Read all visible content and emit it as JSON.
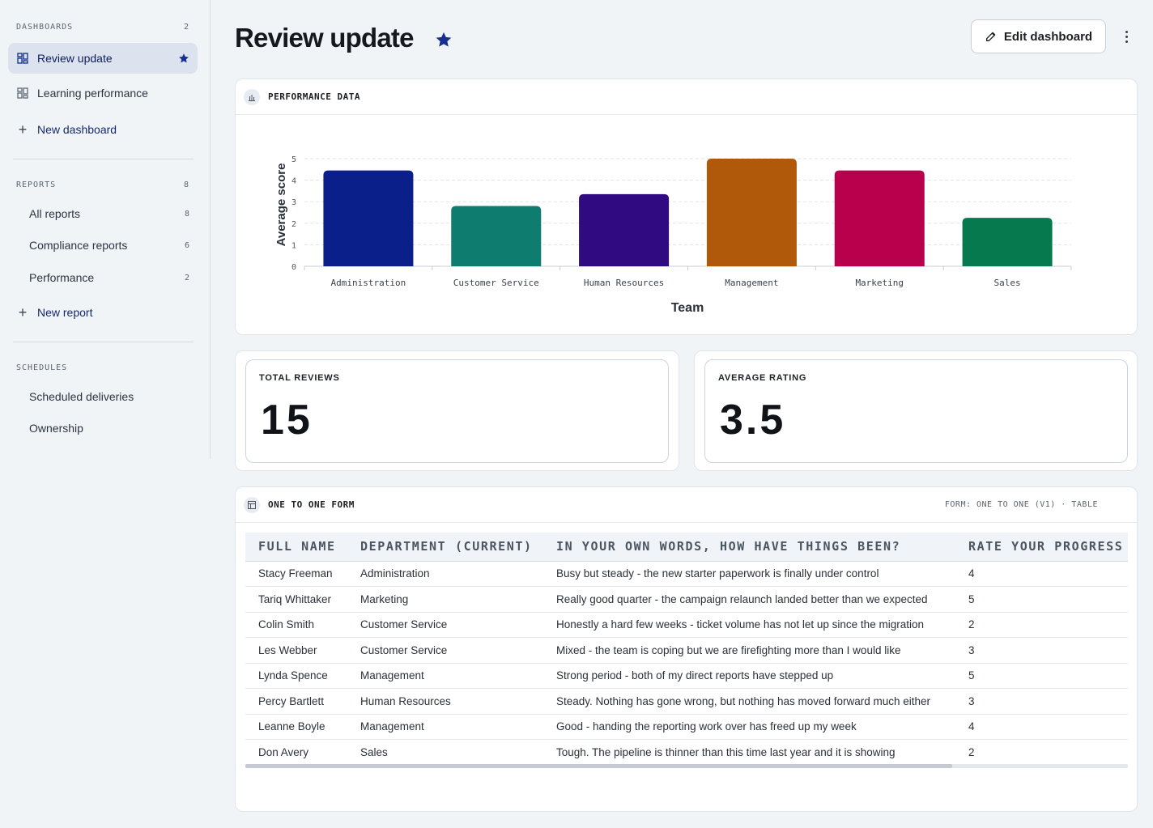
{
  "sidebar": {
    "dashboards": {
      "heading": "DASHBOARDS",
      "count": "2",
      "items": [
        {
          "label": "Review update"
        },
        {
          "label": "Learning performance"
        }
      ],
      "new_label": "New dashboard"
    },
    "reports": {
      "heading": "REPORTS",
      "count": "8",
      "items": [
        {
          "label": "All reports",
          "count": "8"
        },
        {
          "label": "Compliance reports",
          "count": "6"
        },
        {
          "label": "Performance",
          "count": "2"
        }
      ],
      "new_label": "New report"
    },
    "schedules": {
      "heading": "SCHEDULES",
      "items": [
        {
          "label": "Scheduled deliveries"
        },
        {
          "label": "Ownership"
        }
      ]
    }
  },
  "header": {
    "title": "Review update",
    "edit_label": "Edit dashboard"
  },
  "chart_panel": {
    "title": "PERFORMANCE DATA"
  },
  "chart_data": {
    "type": "bar",
    "categories": [
      "Administration",
      "Customer Service",
      "Human Resources",
      "Management",
      "Marketing",
      "Sales"
    ],
    "values": [
      4.45,
      2.8,
      3.35,
      5.0,
      4.45,
      2.25
    ],
    "colors": [
      "#0b1f8a",
      "#0e7c6e",
      "#2f0a80",
      "#b0590a",
      "#b8004c",
      "#067a4e"
    ],
    "xlabel": "Team",
    "ylabel": "Average score",
    "ylim": [
      0,
      5
    ],
    "yticks": [
      "0",
      "1",
      "2",
      "3",
      "4",
      "5"
    ],
    "grid": true
  },
  "stats": {
    "total_reviews": {
      "label": "TOTAL REVIEWS",
      "value": "15"
    },
    "average_rating": {
      "label": "AVERAGE RATING",
      "value": "3.5"
    }
  },
  "table_panel": {
    "title": "ONE TO ONE FORM",
    "meta": "FORM: ONE TO ONE (V1) · TABLE",
    "columns": [
      "FULL NAME",
      "DEPARTMENT (CURRENT)",
      "IN YOUR OWN WORDS, HOW HAVE THINGS BEEN?",
      "RATE YOUR PROGRESS"
    ],
    "rows": [
      [
        "Stacy Freeman",
        "Administration",
        "Busy but steady - the new starter paperwork is finally under control",
        "4"
      ],
      [
        "Tariq Whittaker",
        "Marketing",
        "Really good quarter - the campaign relaunch landed better than we expected",
        "5"
      ],
      [
        "Colin Smith",
        "Customer Service",
        "Honestly a hard few weeks - ticket volume has not let up since the migration",
        "2"
      ],
      [
        "Les Webber",
        "Customer Service",
        "Mixed - the team is coping but we are firefighting more than I would like",
        "3"
      ],
      [
        "Lynda Spence",
        "Management",
        "Strong period - both of my direct reports have stepped up",
        "5"
      ],
      [
        "Percy Bartlett",
        "Human Resources",
        "Steady. Nothing has gone wrong, but nothing has moved forward much either",
        "3"
      ],
      [
        "Leanne Boyle",
        "Management",
        "Good - handing the reporting work over has freed up my week",
        "4"
      ],
      [
        "Don Avery",
        "Sales",
        "Tough. The pipeline is thinner than this time last year and it is showing",
        "2"
      ]
    ]
  }
}
